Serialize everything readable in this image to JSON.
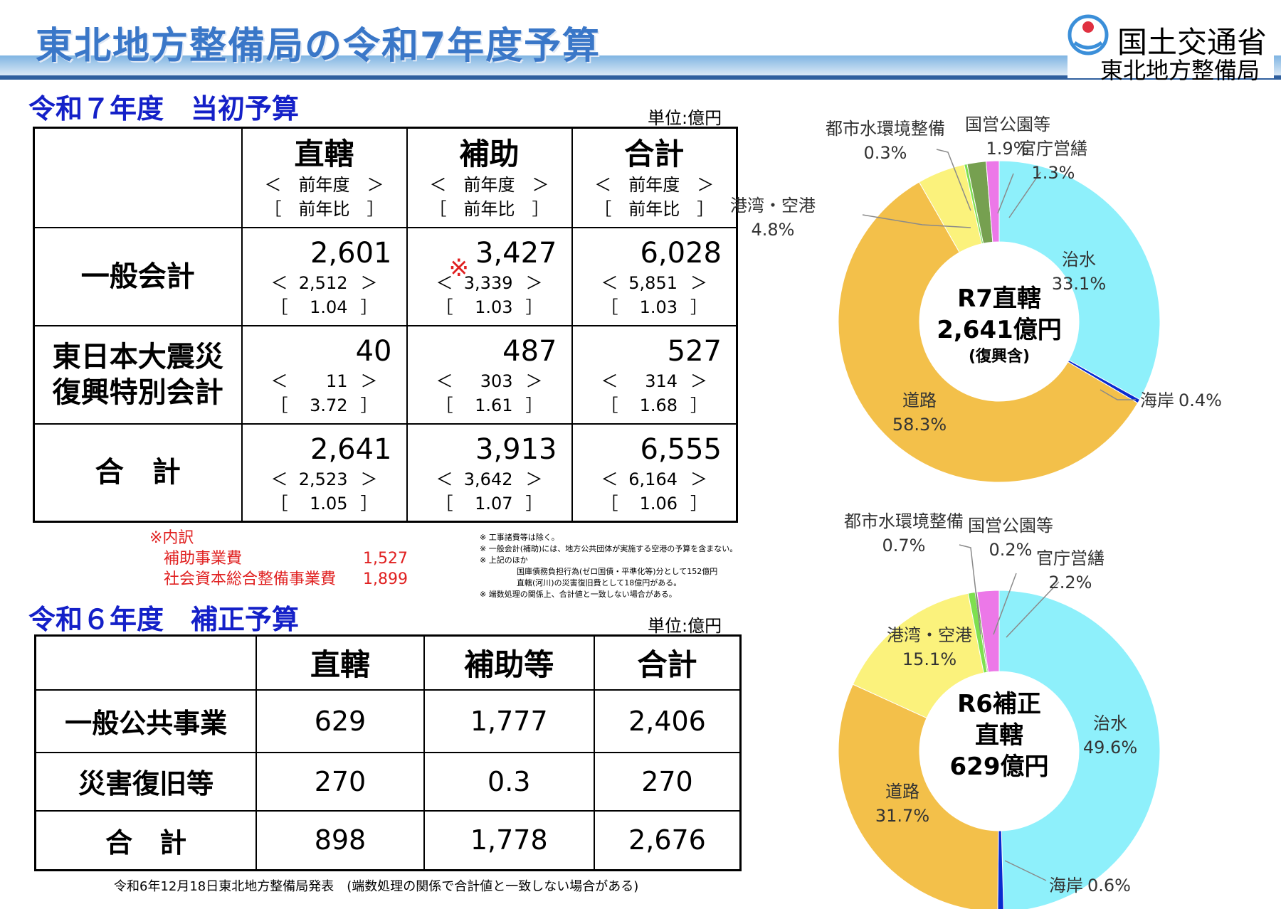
{
  "page_title": "東北地方整備局の令和7年度予算",
  "logo": {
    "ministry": "国土交通省",
    "bureau": "東北地方整備局"
  },
  "section1": {
    "title": "令和７年度　当初予算",
    "unit": "単位:億円",
    "headers": [
      {
        "main": "直轄",
        "prev": "前年度",
        "ratio": "前年比"
      },
      {
        "main": "補助",
        "prev": "前年度",
        "ratio": "前年比"
      },
      {
        "main": "合計",
        "prev": "前年度",
        "ratio": "前年比"
      }
    ],
    "rows": [
      {
        "label": "一般会計",
        "cells": [
          {
            "value": "2,601",
            "prev": "2,512",
            "ratio": "1.04"
          },
          {
            "value": "3,427",
            "prev": "3,339",
            "ratio": "1.03",
            "mark": "※"
          },
          {
            "value": "6,028",
            "prev": "5,851",
            "ratio": "1.03"
          }
        ]
      },
      {
        "label": "東日本大震災\n復興特別会計",
        "label1": "東日本大震災",
        "label2": "復興特別会計",
        "cells": [
          {
            "value": "40",
            "prev": "11",
            "ratio": "3.72"
          },
          {
            "value": "487",
            "prev": "303",
            "ratio": "1.61"
          },
          {
            "value": "527",
            "prev": "314",
            "ratio": "1.68"
          }
        ]
      },
      {
        "label": "合　計",
        "cells": [
          {
            "value": "2,641",
            "prev": "2,523",
            "ratio": "1.05"
          },
          {
            "value": "3,913",
            "prev": "3,642",
            "ratio": "1.07"
          },
          {
            "value": "6,555",
            "prev": "6,164",
            "ratio": "1.06"
          }
        ]
      }
    ],
    "breakdown": {
      "title": "※内訳",
      "items": [
        {
          "label": "補助事業費",
          "value": "1,527"
        },
        {
          "label": "社会資本総合整備事業費",
          "value": "1,899"
        }
      ]
    },
    "notes": [
      "※ 工事諸費等は除く。",
      "※ 一般会計(補助)には、地方公共団体が実施する空港の予算を含まない。",
      "※ 上記のほか",
      "国庫債務負担行為(ゼロ国債・平準化等)分として152億円",
      "直轄(河川)の災害復旧費として18億円がある。",
      "※ 端数処理の関係上、合計値と一致しない場合がある。"
    ]
  },
  "section2": {
    "title": "令和６年度　補正予算",
    "unit": "単位:億円",
    "headers": [
      "直轄",
      "補助等",
      "合計"
    ],
    "rows": [
      {
        "label": "一般公共事業",
        "values": [
          "629",
          "1,777",
          "2,406"
        ]
      },
      {
        "label": "災害復旧等",
        "values": [
          "270",
          "0.3",
          "270"
        ]
      },
      {
        "label": "合　計",
        "values": [
          "898",
          "1,778",
          "2,676"
        ]
      }
    ]
  },
  "footer": "令和6年12月18日東北地方整備局発表　(端数処理の関係で合計値と一致しない場合がある)",
  "chart_data": [
    {
      "type": "pie",
      "center": [
        "R7直轄",
        "2,641億円",
        "(復興含)"
      ],
      "slices": [
        {
          "name": "治水",
          "value": 33.1,
          "label": "33.1%",
          "color": "#8ef0fb"
        },
        {
          "name": "海岸",
          "value": 0.4,
          "label": "0.4%",
          "color": "#0a2bd0"
        },
        {
          "name": "道路",
          "value": 58.3,
          "label": "58.3%",
          "color": "#f3c04a"
        },
        {
          "name": "港湾・空港",
          "value": 4.8,
          "label": "4.8%",
          "color": "#fbf27c"
        },
        {
          "name": "都市水環境整備",
          "value": 0.3,
          "label": "0.3%",
          "color": "#7ee050"
        },
        {
          "name": "国営公園等",
          "value": 1.9,
          "label": "1.9%",
          "color": "#76a050"
        },
        {
          "name": "官庁営繕",
          "value": 1.3,
          "label": "1.3%",
          "color": "#ec78e8"
        }
      ]
    },
    {
      "type": "pie",
      "center": [
        "R6補正",
        "直轄",
        "629億円"
      ],
      "slices": [
        {
          "name": "治水",
          "value": 49.6,
          "label": "49.6%",
          "color": "#8ef0fb"
        },
        {
          "name": "海岸",
          "value": 0.6,
          "label": "0.6%",
          "color": "#0a2bd0"
        },
        {
          "name": "道路",
          "value": 31.7,
          "label": "31.7%",
          "color": "#f3c04a"
        },
        {
          "name": "港湾・空港",
          "value": 15.1,
          "label": "15.1%",
          "color": "#fbf27c"
        },
        {
          "name": "都市水環境整備",
          "value": 0.7,
          "label": "0.7%",
          "color": "#7ee050"
        },
        {
          "name": "国営公園等",
          "value": 0.2,
          "label": "0.2%",
          "color": "#76a050"
        },
        {
          "name": "官庁営繕",
          "value": 2.2,
          "label": "2.2%",
          "color": "#ec78e8"
        }
      ]
    }
  ]
}
